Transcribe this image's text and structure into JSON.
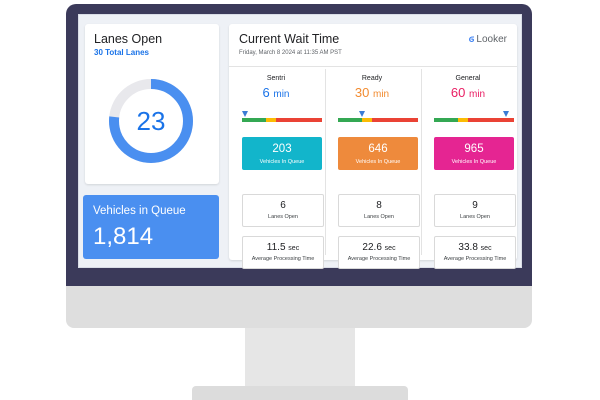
{
  "lanes_open": {
    "title": "Lanes Open",
    "subtitle": "30 Total Lanes",
    "value": "23",
    "total": 30,
    "open": 23
  },
  "vehicles_in_queue": {
    "title": "Vehicles in Queue",
    "value": "1,814"
  },
  "wait_panel": {
    "title": "Current Wait Time",
    "date": "Friday, March 8 2024 at 11:35 AM PST",
    "brand": "Looker",
    "brand_mark": "ϭ",
    "columns": [
      {
        "name": "Sentri",
        "wait": "6",
        "wait_unit": "min",
        "color": "#1a73e8",
        "queue_value": "203",
        "queue_label": "Vehicles In Queue",
        "queue_color": "#12b5cb",
        "lanes_value": "6",
        "lanes_label": "Lanes Open",
        "proc_value": "11.5",
        "proc_unit": "sec",
        "proc_label": "Average Processing Time",
        "marker_position": 0.05
      },
      {
        "name": "Ready",
        "wait": "30",
        "wait_unit": "min",
        "color": "#f28b30",
        "queue_value": "646",
        "queue_label": "Vehicles In Queue",
        "queue_color": "#ee8a3c",
        "lanes_value": "8",
        "lanes_label": "Lanes Open",
        "proc_value": "22.6",
        "proc_unit": "sec",
        "proc_label": "Average Processing Time",
        "marker_position": 0.3
      },
      {
        "name": "General",
        "wait": "60",
        "wait_unit": "min",
        "color": "#e91e63",
        "queue_value": "965",
        "queue_label": "Vehicles In Queue",
        "queue_color": "#e52592",
        "lanes_value": "9",
        "lanes_label": "Lanes Open",
        "proc_value": "33.8",
        "proc_unit": "sec",
        "proc_label": "Average Processing Time",
        "marker_position": 0.9
      }
    ],
    "scale_colors": [
      "#34a853",
      "#fbbc04",
      "#ea4335"
    ]
  },
  "colors": {
    "accent": "#1a73e8",
    "gauge_track": "#e8e8ec",
    "bezel": "#3b3a5a"
  }
}
